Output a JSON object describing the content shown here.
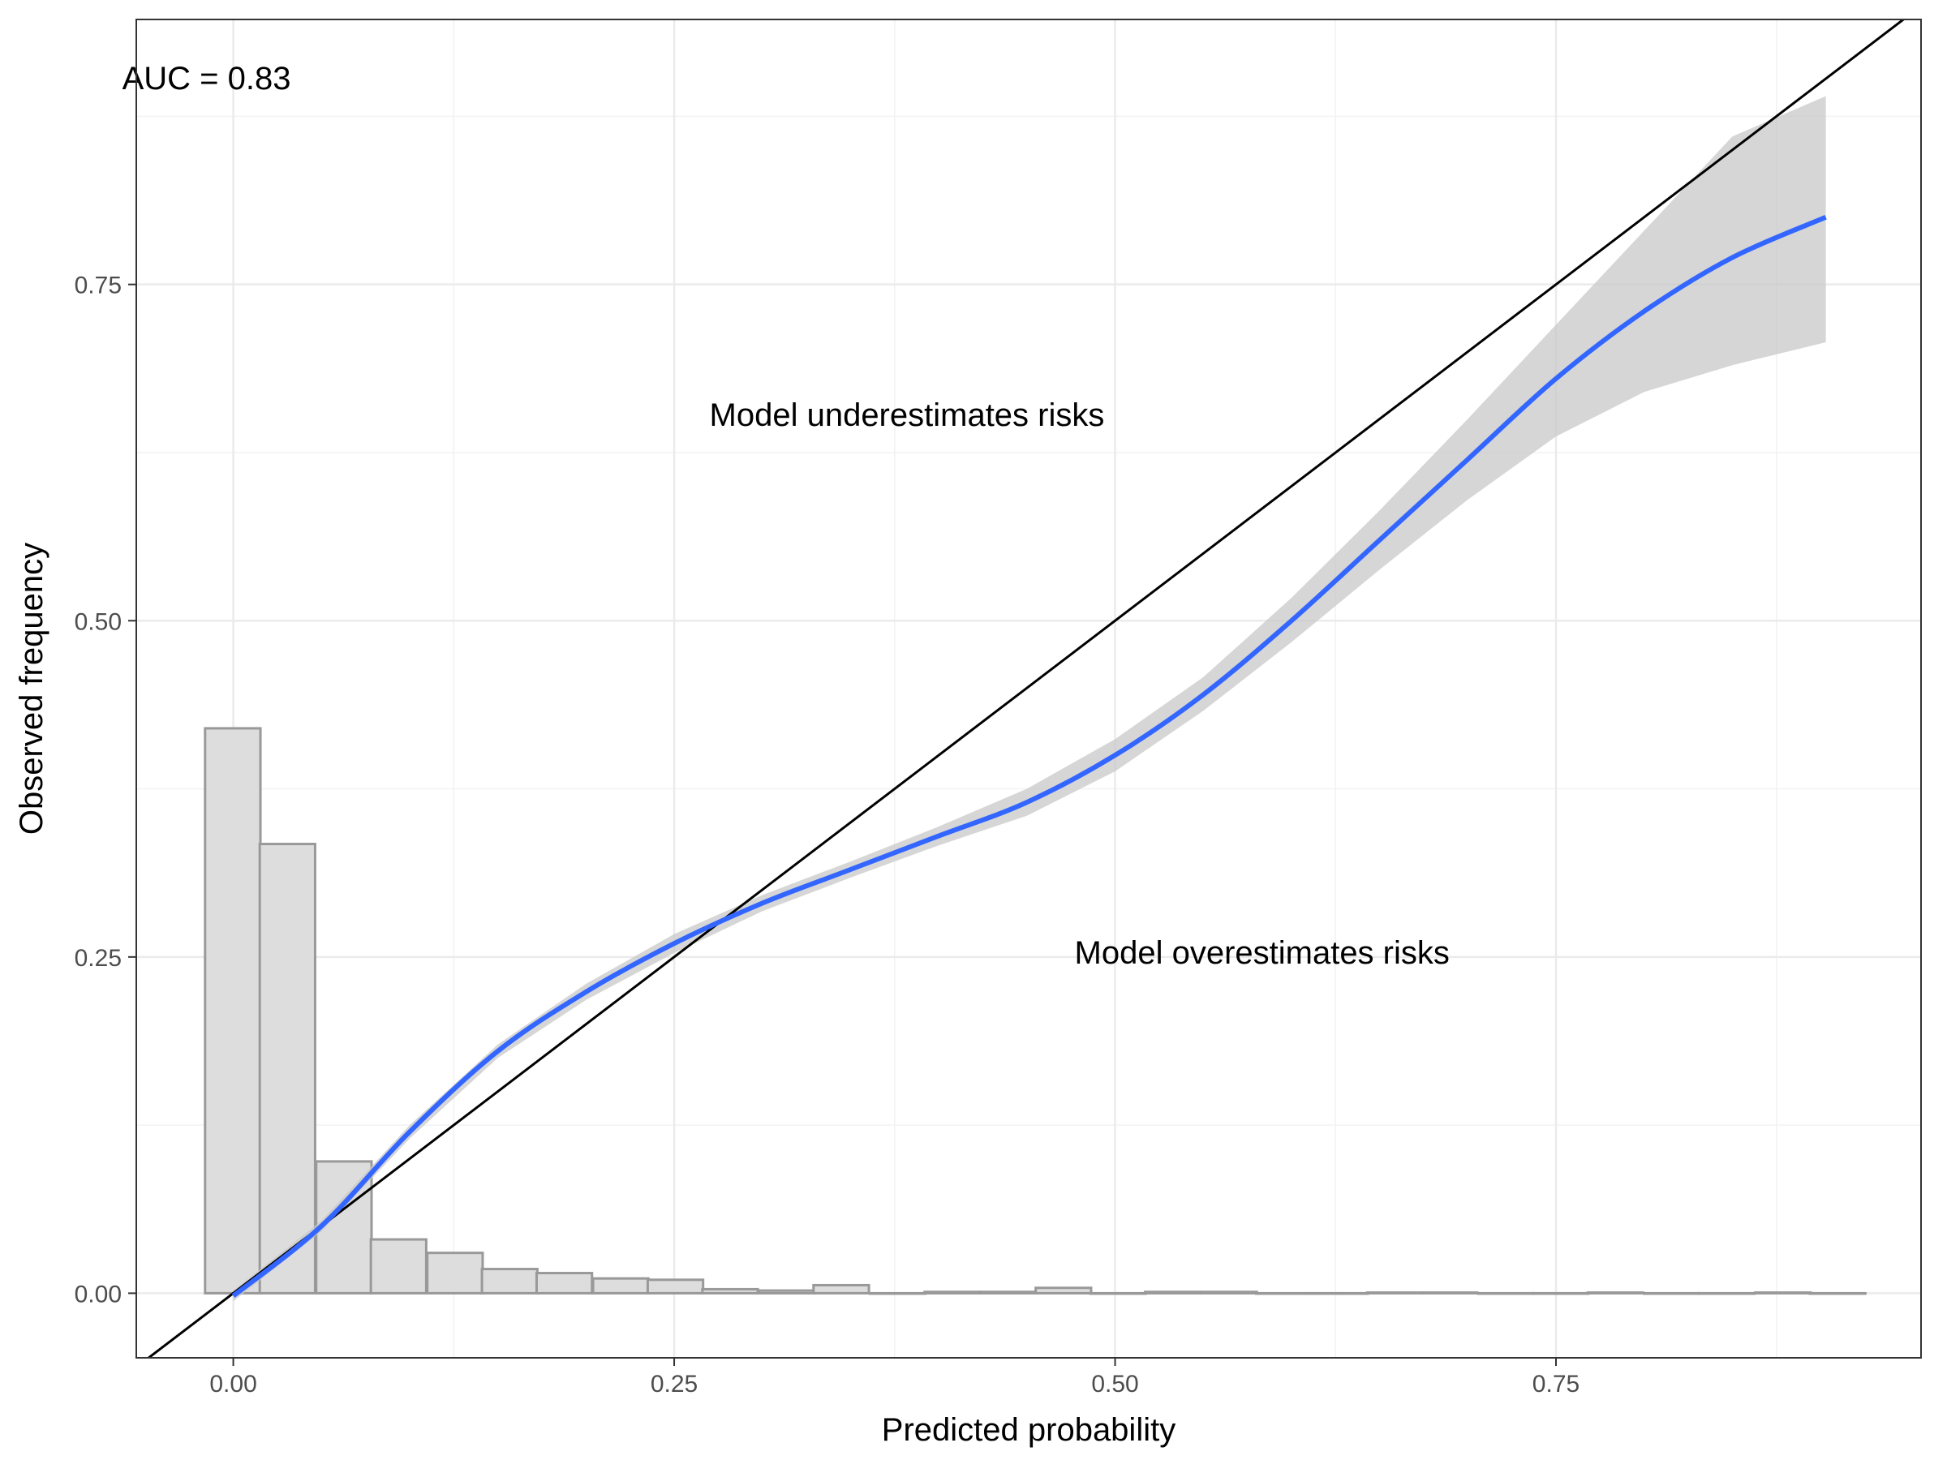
{
  "chart_data": {
    "type": "line",
    "xlabel": "Predicted probability",
    "ylabel": "Observed frequency",
    "xlim": [
      -0.055,
      0.957
    ],
    "ylim": [
      -0.048,
      0.947
    ],
    "x_ticks": [
      0.0,
      0.25,
      0.5,
      0.75
    ],
    "x_tick_labels": [
      "0.00",
      "0.25",
      "0.50",
      "0.75"
    ],
    "y_ticks": [
      0.0,
      0.25,
      0.5,
      0.75
    ],
    "y_tick_labels": [
      "0.00",
      "0.25",
      "0.50",
      "0.75"
    ],
    "grid": true,
    "annotations": [
      {
        "id": "auc",
        "text": "AUC = 0.83",
        "x": -0.063,
        "y": 0.895,
        "anchor": "start"
      },
      {
        "id": "under",
        "text": "Model underestimates risks",
        "x": 0.27,
        "y": 0.645,
        "anchor": "start"
      },
      {
        "id": "over",
        "text": "Model overestimates risks",
        "x": 0.477,
        "y": 0.245,
        "anchor": "start"
      }
    ],
    "reference_line": {
      "from": [
        -0.1,
        -0.1
      ],
      "to": [
        1.0,
        1.0
      ],
      "color": "#000000"
    },
    "histogram": {
      "bin_width": 0.0314,
      "fill": "#dddddd",
      "stroke": "#999999",
      "bins": [
        {
          "x0": -0.016,
          "height": 0.42
        },
        {
          "x0": 0.015,
          "height": 0.334
        },
        {
          "x0": 0.047,
          "height": 0.098
        },
        {
          "x0": 0.078,
          "height": 0.04
        },
        {
          "x0": 0.11,
          "height": 0.03
        },
        {
          "x0": 0.141,
          "height": 0.018
        },
        {
          "x0": 0.172,
          "height": 0.015
        },
        {
          "x0": 0.204,
          "height": 0.011
        },
        {
          "x0": 0.235,
          "height": 0.01
        },
        {
          "x0": 0.266,
          "height": 0.003
        },
        {
          "x0": 0.298,
          "height": 0.002
        },
        {
          "x0": 0.329,
          "height": 0.006
        },
        {
          "x0": 0.361,
          "height": 0.0
        },
        {
          "x0": 0.392,
          "height": 0.001
        },
        {
          "x0": 0.423,
          "height": 0.001
        },
        {
          "x0": 0.455,
          "height": 0.004
        },
        {
          "x0": 0.486,
          "height": 0.0
        },
        {
          "x0": 0.517,
          "height": 0.001
        },
        {
          "x0": 0.549,
          "height": 0.001
        },
        {
          "x0": 0.58,
          "height": 0.0
        },
        {
          "x0": 0.612,
          "height": 0.0
        },
        {
          "x0": 0.643,
          "height": 0.0005
        },
        {
          "x0": 0.674,
          "height": 0.0005
        },
        {
          "x0": 0.706,
          "height": 0.0
        },
        {
          "x0": 0.737,
          "height": 0.0
        },
        {
          "x0": 0.768,
          "height": 0.0005
        },
        {
          "x0": 0.8,
          "height": 0.0
        },
        {
          "x0": 0.831,
          "height": 0.0
        },
        {
          "x0": 0.863,
          "height": 0.0005
        },
        {
          "x0": 0.894,
          "height": 0.0
        }
      ]
    },
    "series": [
      {
        "type": "smooth",
        "color": "#3366ff",
        "ribbon_color": "#c8c8c8",
        "points": [
          {
            "x": 0.0,
            "y": -0.002,
            "lo": -0.006,
            "hi": 0.002
          },
          {
            "x": 0.05,
            "y": 0.05,
            "lo": 0.046,
            "hi": 0.054
          },
          {
            "x": 0.1,
            "y": 0.12,
            "lo": 0.115,
            "hi": 0.125
          },
          {
            "x": 0.15,
            "y": 0.18,
            "lo": 0.175,
            "hi": 0.185
          },
          {
            "x": 0.2,
            "y": 0.224,
            "lo": 0.218,
            "hi": 0.23
          },
          {
            "x": 0.25,
            "y": 0.26,
            "lo": 0.253,
            "hi": 0.267
          },
          {
            "x": 0.3,
            "y": 0.29,
            "lo": 0.284,
            "hi": 0.296
          },
          {
            "x": 0.35,
            "y": 0.315,
            "lo": 0.309,
            "hi": 0.321
          },
          {
            "x": 0.4,
            "y": 0.34,
            "lo": 0.333,
            "hi": 0.347
          },
          {
            "x": 0.45,
            "y": 0.365,
            "lo": 0.355,
            "hi": 0.375
          },
          {
            "x": 0.5,
            "y": 0.4,
            "lo": 0.388,
            "hi": 0.412
          },
          {
            "x": 0.55,
            "y": 0.445,
            "lo": 0.433,
            "hi": 0.458
          },
          {
            "x": 0.6,
            "y": 0.5,
            "lo": 0.484,
            "hi": 0.517
          },
          {
            "x": 0.65,
            "y": 0.56,
            "lo": 0.538,
            "hi": 0.582
          },
          {
            "x": 0.7,
            "y": 0.62,
            "lo": 0.59,
            "hi": 0.65
          },
          {
            "x": 0.75,
            "y": 0.68,
            "lo": 0.637,
            "hi": 0.72
          },
          {
            "x": 0.8,
            "y": 0.73,
            "lo": 0.67,
            "hi": 0.79
          },
          {
            "x": 0.85,
            "y": 0.77,
            "lo": 0.69,
            "hi": 0.86
          },
          {
            "x": 0.903,
            "y": 0.8,
            "lo": 0.707,
            "hi": 0.89
          }
        ]
      }
    ]
  }
}
